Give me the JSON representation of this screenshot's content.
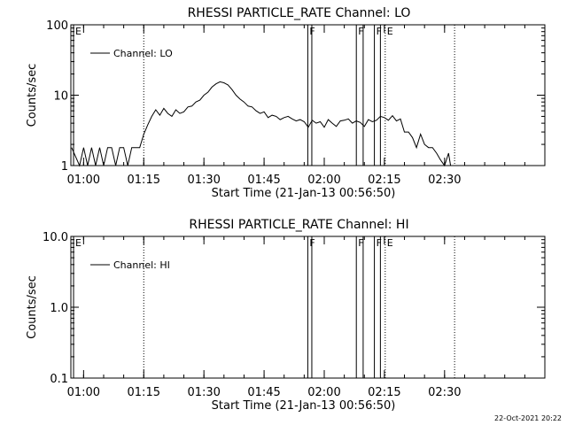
{
  "footer_timestamp": "22-Oct-2021 20:22",
  "chart_data": [
    {
      "type": "line",
      "title": "RHESSI PARTICLE_RATE Channel: LO",
      "xlabel": "Start Time (21-Jan-13 00:56:50)",
      "ylabel": "Counts/sec",
      "y_scale": "log",
      "ylim": [
        1,
        100
      ],
      "y_ticks": [
        {
          "value": 1,
          "label": "1"
        },
        {
          "value": 10,
          "label": "10"
        },
        {
          "value": 100,
          "label": "100"
        }
      ],
      "x_ticks": [
        {
          "minute": 60,
          "label": "01:00"
        },
        {
          "minute": 75,
          "label": "01:15"
        },
        {
          "minute": 90,
          "label": "01:30"
        },
        {
          "minute": 105,
          "label": "01:45"
        },
        {
          "minute": 120,
          "label": "02:00"
        },
        {
          "minute": 135,
          "label": "02:15"
        },
        {
          "minute": 150,
          "label": "02:30"
        }
      ],
      "xlim_minutes": [
        56.83,
        175.0
      ],
      "legend": {
        "entries": [
          "Channel: LO"
        ],
        "position": "top-left"
      },
      "markers": [
        {
          "minute": 57.5,
          "label": "E",
          "style": "solid"
        },
        {
          "minute": 75.0,
          "label": "",
          "style": "dotted"
        },
        {
          "minute": 115.9,
          "label": "F",
          "style": "solid"
        },
        {
          "minute": 116.9,
          "label": "",
          "style": "solid"
        },
        {
          "minute": 128.0,
          "label": "F",
          "style": "solid"
        },
        {
          "minute": 129.7,
          "label": "",
          "style": "solid"
        },
        {
          "minute": 132.5,
          "label": "F",
          "style": "solid"
        },
        {
          "minute": 134.0,
          "label": "",
          "style": "solid"
        },
        {
          "minute": 135.2,
          "label": "E",
          "style": "dotted"
        },
        {
          "minute": 152.5,
          "label": "",
          "style": "dotted"
        }
      ],
      "series": [
        {
          "name": "Channel: LO",
          "x_minutes": [
            57.0,
            59.0,
            60.0,
            61.0,
            62.0,
            63.0,
            64.0,
            65.0,
            66.0,
            67.0,
            68.0,
            69.0,
            70.0,
            71.0,
            72.0,
            73.0,
            74.0,
            75.0,
            76.0,
            77.0,
            78.0,
            79.0,
            80.0,
            81.0,
            82.0,
            83.0,
            84.0,
            85.0,
            86.0,
            87.0,
            88.0,
            89.0,
            90.0,
            91.0,
            92.0,
            93.0,
            94.0,
            95.0,
            96.0,
            97.0,
            98.0,
            99.0,
            100.0,
            101.0,
            102.0,
            103.0,
            104.0,
            105.0,
            106.0,
            107.0,
            108.0,
            109.0,
            110.0,
            111.0,
            112.0,
            113.0,
            114.0,
            115.0,
            116.0,
            117.0,
            118.0,
            119.0,
            120.0,
            121.0,
            122.0,
            123.0,
            124.0,
            125.0,
            126.0,
            127.0,
            128.0,
            129.0,
            130.0,
            131.0,
            132.0,
            133.0,
            134.0,
            135.0,
            136.0,
            137.0,
            138.0,
            139.0,
            140.0,
            141.0,
            142.0,
            143.0,
            144.0,
            145.0,
            146.0,
            147.0,
            148.0,
            149.0,
            150.0,
            151.0,
            151.5
          ],
          "values": [
            1.8,
            1.0,
            1.8,
            1.0,
            1.8,
            1.0,
            1.8,
            1.0,
            1.8,
            1.8,
            1.0,
            1.8,
            1.8,
            1.0,
            1.8,
            1.8,
            1.8,
            2.8,
            3.8,
            5.0,
            6.2,
            5.2,
            6.5,
            5.5,
            5.0,
            6.2,
            5.5,
            5.8,
            6.8,
            7.0,
            8.0,
            8.5,
            10.0,
            11.0,
            13.0,
            14.5,
            15.5,
            15.0,
            14.0,
            12.0,
            10.0,
            8.8,
            8.0,
            7.0,
            6.8,
            6.0,
            5.5,
            5.8,
            4.8,
            5.2,
            5.0,
            4.5,
            4.8,
            5.0,
            4.6,
            4.3,
            4.5,
            4.2,
            3.5,
            4.4,
            4.0,
            4.2,
            3.5,
            4.5,
            4.0,
            3.6,
            4.3,
            4.4,
            4.6,
            4.0,
            4.3,
            4.1,
            3.6,
            4.5,
            4.2,
            4.4,
            5.0,
            4.8,
            4.4,
            5.1,
            4.3,
            4.6,
            3.0,
            3.0,
            2.5,
            1.8,
            2.8,
            2.0,
            1.8,
            1.8,
            1.5,
            1.2,
            1.0,
            1.5,
            1.0
          ]
        }
      ]
    },
    {
      "type": "line",
      "title": "RHESSI PARTICLE_RATE Channel: HI",
      "xlabel": "Start Time (21-Jan-13 00:56:50)",
      "ylabel": "Counts/sec",
      "y_scale": "log",
      "ylim": [
        0.1,
        10
      ],
      "y_ticks": [
        {
          "value": 0.1,
          "label": "0.1"
        },
        {
          "value": 1,
          "label": "1.0"
        },
        {
          "value": 10,
          "label": "10.0"
        }
      ],
      "x_ticks": [
        {
          "minute": 60,
          "label": "01:00"
        },
        {
          "minute": 75,
          "label": "01:15"
        },
        {
          "minute": 90,
          "label": "01:30"
        },
        {
          "minute": 105,
          "label": "01:45"
        },
        {
          "minute": 120,
          "label": "02:00"
        },
        {
          "minute": 135,
          "label": "02:15"
        },
        {
          "minute": 150,
          "label": "02:30"
        }
      ],
      "xlim_minutes": [
        56.83,
        175.0
      ],
      "legend": {
        "entries": [
          "Channel: HI"
        ],
        "position": "top-left"
      },
      "markers": [
        {
          "minute": 57.5,
          "label": "E",
          "style": "solid"
        },
        {
          "minute": 75.0,
          "label": "",
          "style": "dotted"
        },
        {
          "minute": 115.9,
          "label": "F",
          "style": "solid"
        },
        {
          "minute": 116.9,
          "label": "",
          "style": "solid"
        },
        {
          "minute": 128.0,
          "label": "F",
          "style": "solid"
        },
        {
          "minute": 129.7,
          "label": "",
          "style": "solid"
        },
        {
          "minute": 132.5,
          "label": "F",
          "style": "solid"
        },
        {
          "minute": 134.0,
          "label": "",
          "style": "solid"
        },
        {
          "minute": 135.2,
          "label": "E",
          "style": "dotted"
        },
        {
          "minute": 152.5,
          "label": "",
          "style": "dotted"
        }
      ],
      "series": [
        {
          "name": "Channel: HI",
          "x_minutes": [],
          "values": []
        }
      ]
    }
  ]
}
